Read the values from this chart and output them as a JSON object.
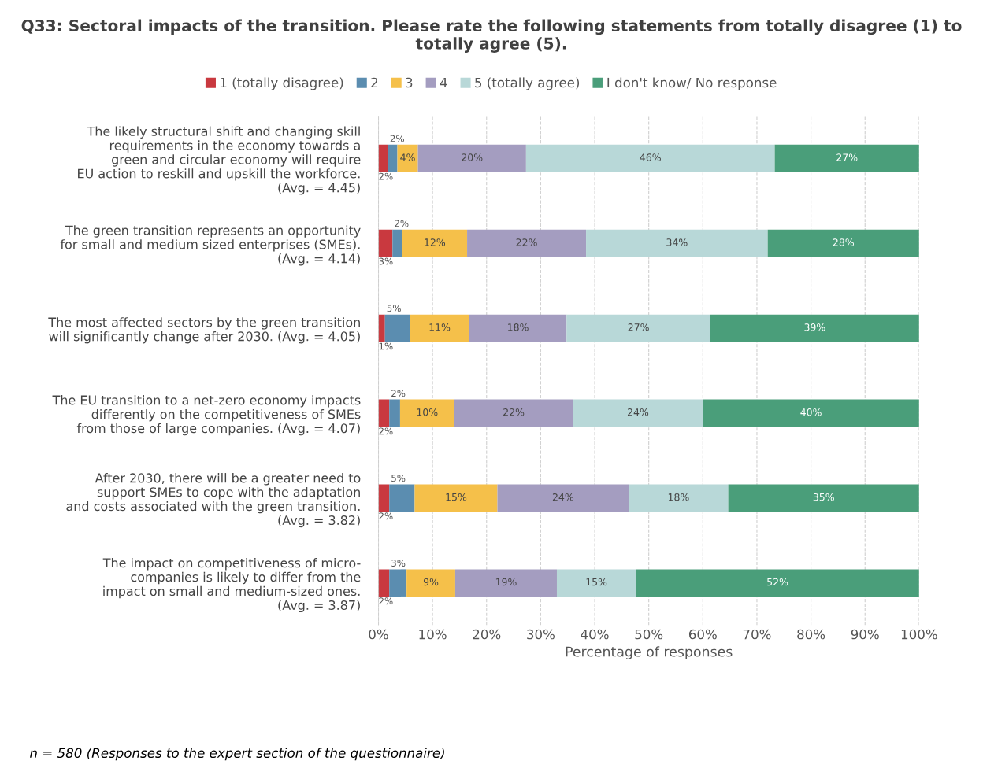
{
  "chart_data": {
    "type": "bar",
    "orientation": "horizontal",
    "stacked": true,
    "title": "Q33: Sectoral impacts of the transition. Please rate the following statements from totally disagree (1) to totally agree (5).",
    "categories": [
      "The likely structural shift and changing skill\nrequirements in the economy towards a\ngreen and circular economy will require\nEU action to reskill and upskill the workforce.\n(Avg. = 4.45)",
      "The green transition represents an opportunity\nfor small and medium sized enterprises (SMEs).\n(Avg. = 4.14)",
      "The most affected sectors by the green transition\nwill significantly change after 2030. (Avg. = 4.05)",
      "The EU transition to a net-zero economy impacts\ndifferently on the competitiveness of SMEs\nfrom those of large companies. (Avg. = 4.07)",
      "After 2030, there will be a greater need to\nsupport SMEs to cope with the adaptation\nand costs associated with the green transition.\n(Avg. = 3.82)",
      "The impact on competitiveness of micro-\ncompanies is likely to differ from the\nimpact on small and medium-sized ones.\n(Avg. = 3.87)"
    ],
    "series": [
      {
        "name": "1 (totally disagree)",
        "color": "#c9393f",
        "values": [
          1.8,
          2.6,
          1.2,
          2,
          2,
          2
        ],
        "value_labels": [
          "2%",
          "3%",
          "1%",
          "2%",
          "2%",
          "2%"
        ]
      },
      {
        "name": "2",
        "color": "#5b8db0",
        "values": [
          1.7,
          1.8,
          4.6,
          2,
          4.7,
          3.2
        ],
        "value_labels": [
          "2%",
          "2%",
          "5%",
          "2%",
          "5%",
          "3%"
        ]
      },
      {
        "name": "3",
        "color": "#f5c04a",
        "values": [
          3.8,
          12,
          11,
          10,
          15.3,
          9
        ],
        "value_labels": [
          "4%",
          "12%",
          "11%",
          "10%",
          "15%",
          "9%"
        ]
      },
      {
        "name": "4",
        "color": "#a49dc0",
        "values": [
          20,
          22,
          18,
          22,
          24.3,
          18.8
        ],
        "value_labels": [
          "20%",
          "22%",
          "18%",
          "22%",
          "24%",
          "19%"
        ]
      },
      {
        "name": "5 (totally agree)",
        "color": "#b8d8d8",
        "values": [
          46,
          33.6,
          26.6,
          24,
          18.4,
          14.6
        ],
        "value_labels": [
          "46%",
          "34%",
          "27%",
          "24%",
          "18%",
          "15%"
        ]
      },
      {
        "name": "I don't know/ No response",
        "color": "#4a9e7a",
        "values": [
          26.7,
          28,
          38.6,
          40,
          35.3,
          52.4
        ],
        "value_labels": [
          "27%",
          "28%",
          "39%",
          "40%",
          "35%",
          "52%"
        ]
      }
    ],
    "xlim": [
      0,
      100
    ],
    "xticks": [
      {
        "value": 0,
        "label": "0%"
      },
      {
        "value": 10,
        "label": "10%"
      },
      {
        "value": 20,
        "label": "20%"
      },
      {
        "value": 30,
        "label": "30%"
      },
      {
        "value": 40,
        "label": "40%"
      },
      {
        "value": 50,
        "label": "50%"
      },
      {
        "value": 60,
        "label": "60%"
      },
      {
        "value": 70,
        "label": "70%"
      },
      {
        "value": 80,
        "label": "80%"
      },
      {
        "value": 90,
        "label": "90%"
      },
      {
        "value": 100,
        "label": "100%"
      }
    ],
    "xlabel": "Percentage of responses",
    "grid": "x",
    "legend": "top",
    "annotations": [
      "n = 580 (Responses to the expert section of the questionnaire)"
    ]
  }
}
